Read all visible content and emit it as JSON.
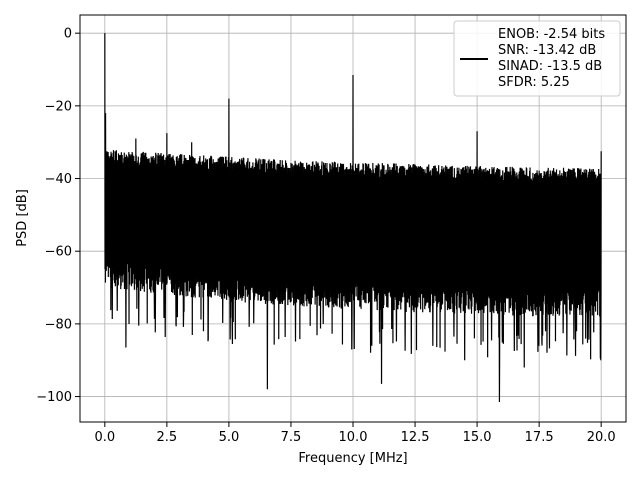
{
  "chart_data": {
    "type": "line",
    "title": "",
    "xlabel": "Frequency [MHz]",
    "ylabel": "PSD [dB]",
    "xlim": [
      -1.0,
      21.0
    ],
    "ylim": [
      -107,
      5
    ],
    "xticks": [
      0.0,
      2.5,
      5.0,
      7.5,
      10.0,
      12.5,
      15.0,
      17.5,
      20.0
    ],
    "xtick_labels": [
      "0.0",
      "2.5",
      "5.0",
      "7.5",
      "10.0",
      "12.5",
      "15.0",
      "17.5",
      "20.0"
    ],
    "yticks": [
      0,
      -20,
      -40,
      -60,
      -80,
      -100
    ],
    "ytick_labels": [
      "0",
      "−20",
      "−40",
      "−60",
      "−80",
      "−100"
    ],
    "grid": true,
    "legend_position": "top-right",
    "legend_lines": [
      "ENOB: -2.54 bits",
      "SNR: -13.42 dB",
      "SINAD: -13.5 dB",
      "SFDR: 5.25"
    ],
    "series": [
      {
        "color": "#000000",
        "noise_floor": {
          "x": [
            0.0,
            2.5,
            5.0,
            7.5,
            10.0,
            12.5,
            15.0,
            17.5,
            20.0
          ],
          "upper": [
            -32,
            -33,
            -34,
            -35,
            -35.5,
            -36,
            -36.5,
            -37,
            -37
          ],
          "lower": [
            -70,
            -72,
            -74,
            -75,
            -76,
            -77,
            -77.5,
            -78,
            -78
          ]
        },
        "spurs": [
          {
            "x": 0.0,
            "y": 0
          },
          {
            "x": 0.03,
            "y": -22
          },
          {
            "x": 1.25,
            "y": -29
          },
          {
            "x": 2.5,
            "y": -27.5
          },
          {
            "x": 3.5,
            "y": -30
          },
          {
            "x": 5.0,
            "y": -18
          },
          {
            "x": 10.0,
            "y": -11.5
          },
          {
            "x": 15.0,
            "y": -27
          },
          {
            "x": 20.0,
            "y": -32.5
          }
        ],
        "dips": [
          {
            "x": 0.85,
            "y": -86.5
          },
          {
            "x": 6.55,
            "y": -98
          },
          {
            "x": 11.15,
            "y": -96.5
          },
          {
            "x": 15.9,
            "y": -101.5
          },
          {
            "x": 14.5,
            "y": -90
          },
          {
            "x": 16.9,
            "y": -92
          }
        ]
      }
    ]
  }
}
